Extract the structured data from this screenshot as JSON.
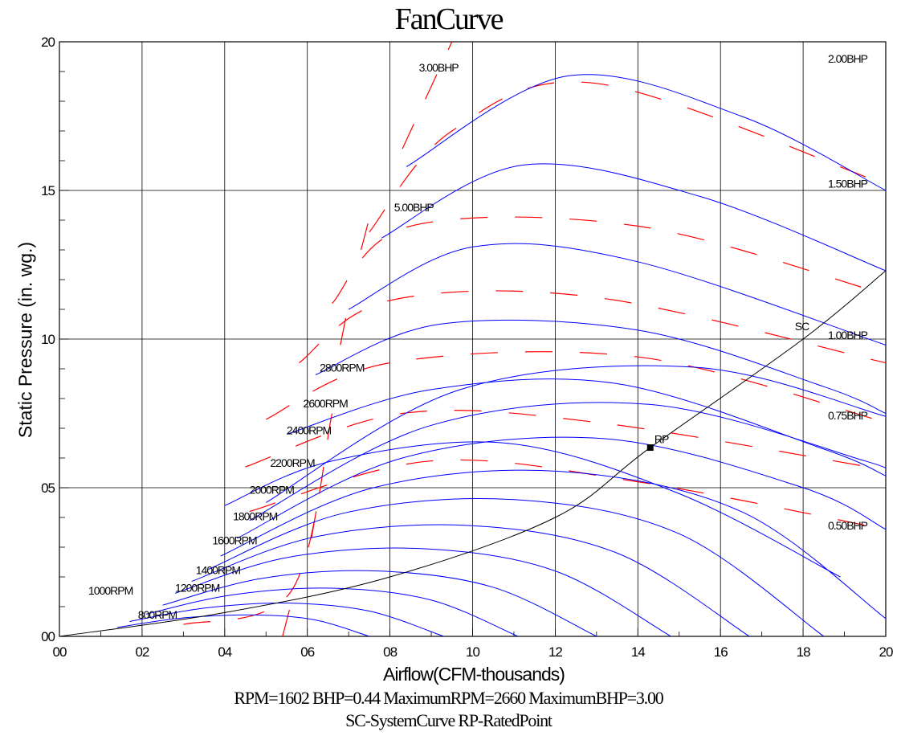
{
  "title": "FanCurve",
  "footer_line1": "RPM=1602 BHP=0.44 MaximumRPM=2660 MaximumBHP=3.00",
  "footer_line2": "SC-SystemCurve RP-RatedPoint",
  "colors": {
    "rpm_curves": "#0000ff",
    "bhp_curves": "#ff0000",
    "system_curve": "#000000",
    "grid": "#000000"
  },
  "chart_data": {
    "type": "line",
    "title": "FanCurve",
    "xlabel": "Airflow(CFM-thousands)",
    "ylabel": "Static Pressure (in. wg.)",
    "xlim": [
      0,
      20
    ],
    "ylim": [
      0,
      20
    ],
    "x_ticks": [
      0,
      2,
      4,
      6,
      8,
      10,
      12,
      14,
      16,
      18,
      20
    ],
    "y_ticks": [
      0,
      5,
      10,
      15,
      20
    ],
    "x_tick_labels": [
      "00",
      "02",
      "04",
      "06",
      "08",
      "10",
      "12",
      "14",
      "16",
      "18",
      "20"
    ],
    "y_tick_labels": [
      "00",
      "05",
      "10",
      "15",
      "20"
    ],
    "grid": true,
    "rpm_curves": [
      {
        "label": "800RPM",
        "points": [
          [
            1.4,
            0.3
          ],
          [
            3.0,
            0.62
          ],
          [
            4.8,
            0.72
          ],
          [
            6.2,
            0.55
          ],
          [
            7.5,
            0.0
          ]
        ]
      },
      {
        "label": "1000RPM",
        "points": [
          [
            1.7,
            0.5
          ],
          [
            3.5,
            0.95
          ],
          [
            5.5,
            1.12
          ],
          [
            7.5,
            0.85
          ],
          [
            9.3,
            0.0
          ]
        ]
      },
      {
        "label": "1200RPM",
        "points": [
          [
            2.1,
            0.75
          ],
          [
            4.2,
            1.4
          ],
          [
            6.6,
            1.62
          ],
          [
            9.0,
            1.22
          ],
          [
            11.1,
            0.0
          ]
        ]
      },
      {
        "label": "1400RPM",
        "points": [
          [
            2.5,
            1.05
          ],
          [
            4.9,
            1.95
          ],
          [
            7.7,
            2.2
          ],
          [
            10.5,
            1.65
          ],
          [
            13.0,
            0.0
          ]
        ]
      },
      {
        "label": "1600RPM",
        "points": [
          [
            2.8,
            1.45
          ],
          [
            5.5,
            2.65
          ],
          [
            8.8,
            2.95
          ],
          [
            12.0,
            2.2
          ],
          [
            14.8,
            0.0
          ]
        ]
      },
      {
        "label": "1800RPM",
        "points": [
          [
            3.2,
            1.85
          ],
          [
            6.2,
            3.35
          ],
          [
            9.9,
            3.73
          ],
          [
            13.5,
            2.8
          ],
          [
            16.7,
            0.0
          ]
        ]
      },
      {
        "label": "2000RPM",
        "points": [
          [
            3.6,
            2.25
          ],
          [
            6.9,
            4.15
          ],
          [
            11.0,
            4.6
          ],
          [
            15.0,
            3.45
          ],
          [
            18.5,
            0.0
          ]
        ]
      },
      {
        "label": "2200RPM",
        "points": [
          [
            3.9,
            2.7
          ],
          [
            7.6,
            5.0
          ],
          [
            12.1,
            5.55
          ],
          [
            16.5,
            4.2
          ],
          [
            20.0,
            0.6
          ]
        ]
      },
      {
        "label": "2400RPM",
        "points": [
          [
            4.3,
            3.3
          ],
          [
            8.3,
            6.0
          ],
          [
            13.2,
            6.65
          ],
          [
            18.0,
            5.0
          ],
          [
            20.0,
            3.6
          ]
        ]
      },
      {
        "label": "2600RPM",
        "points": [
          [
            4.6,
            3.9
          ],
          [
            9.0,
            7.1
          ],
          [
            14.3,
            7.8
          ],
          [
            19.5,
            5.9
          ],
          [
            20.0,
            5.5
          ]
        ]
      },
      {
        "label": "2800RPM",
        "points": [
          [
            5.0,
            4.5
          ],
          [
            9.7,
            8.3
          ],
          [
            15.4,
            9.05
          ],
          [
            20.0,
            7.4
          ]
        ]
      },
      {
        "label": "",
        "points": [
          [
            4.0,
            4.4
          ],
          [
            6.6,
            5.9
          ],
          [
            10.8,
            6.5
          ],
          [
            15.0,
            4.8
          ],
          [
            18.9,
            2.0
          ]
        ]
      },
      {
        "label": "",
        "points": [
          [
            5.5,
            6.8
          ],
          [
            9.0,
            8.3
          ],
          [
            13.5,
            8.5
          ],
          [
            18.5,
            6.3
          ],
          [
            20.0,
            5.4
          ]
        ]
      },
      {
        "label": "",
        "points": [
          [
            6.2,
            8.8
          ],
          [
            9.2,
            10.5
          ],
          [
            14.0,
            10.3
          ],
          [
            18.5,
            8.4
          ],
          [
            20.0,
            7.5
          ]
        ]
      },
      {
        "label": "",
        "points": [
          [
            7.0,
            11.0
          ],
          [
            10.0,
            13.1
          ],
          [
            14.0,
            12.6
          ],
          [
            20.0,
            9.8
          ]
        ]
      },
      {
        "label": "",
        "points": [
          [
            7.8,
            13.4
          ],
          [
            11.2,
            15.85
          ],
          [
            15.5,
            14.8
          ],
          [
            20.0,
            12.3
          ]
        ]
      },
      {
        "label": "",
        "points": [
          [
            8.4,
            15.8
          ],
          [
            12.3,
            18.85
          ],
          [
            16.5,
            17.5
          ],
          [
            20.0,
            15.0
          ]
        ]
      }
    ],
    "bhp_curves": [
      {
        "label": "0.50BHP",
        "points": [
          [
            4.6,
            4.2
          ],
          [
            9.0,
            5.9
          ],
          [
            14.0,
            5.2
          ],
          [
            20.0,
            3.6
          ]
        ]
      },
      {
        "label": "0.75BHP",
        "points": [
          [
            4.5,
            5.7
          ],
          [
            8.3,
            7.5
          ],
          [
            13.0,
            7.2
          ],
          [
            20.0,
            5.6
          ]
        ]
      },
      {
        "label": "1.00BHP",
        "points": [
          [
            5.0,
            7.3
          ],
          [
            8.0,
            9.2
          ],
          [
            14.0,
            9.4
          ],
          [
            20.0,
            7.2
          ]
        ]
      },
      {
        "label": "",
        "points": [
          [
            5.8,
            9.2
          ],
          [
            8.0,
            11.3
          ],
          [
            13.0,
            11.4
          ],
          [
            20.0,
            9.2
          ]
        ]
      },
      {
        "label": "",
        "points": [
          [
            6.6,
            11.2
          ],
          [
            8.5,
            13.8
          ],
          [
            14.0,
            13.8
          ],
          [
            20.0,
            11.5
          ]
        ]
      },
      {
        "label": "1.50BHP",
        "points": [
          [
            7.5,
            13.6
          ],
          [
            9.5,
            17.0
          ],
          [
            13.0,
            18.6
          ],
          [
            20.0,
            15.2
          ]
        ]
      },
      {
        "label": "2.00BHP",
        "points": [
          [
            8.3,
            16.4
          ],
          [
            9.5,
            20.0
          ]
        ]
      },
      {
        "label": "",
        "points": [
          [
            3.0,
            0.4
          ],
          [
            5.6,
            1.5
          ],
          [
            6.6,
            7.5
          ]
        ]
      },
      {
        "label": "",
        "points": [
          [
            5.4,
            0.0
          ],
          [
            5.7,
            1.6
          ]
        ]
      },
      {
        "label": "",
        "points": [
          [
            6.1,
            3.3
          ],
          [
            6.3,
            4.9
          ]
        ]
      },
      {
        "label": "",
        "points": [
          [
            6.8,
            9.8
          ],
          [
            7.0,
            11.2
          ]
        ]
      },
      {
        "label": "",
        "points": [
          [
            7.3,
            13.0
          ],
          [
            7.6,
            14.6
          ]
        ]
      }
    ],
    "system_curve": {
      "label": "SC",
      "points": [
        [
          0,
          0
        ],
        [
          4,
          0.8
        ],
        [
          8,
          2.0
        ],
        [
          12,
          4.0
        ],
        [
          14.3,
          6.35
        ],
        [
          18,
          10.0
        ],
        [
          20,
          12.3
        ]
      ]
    },
    "rated_point": {
      "label": "RP",
      "x": 14.3,
      "y": 6.35
    },
    "annotations": [
      {
        "text": "3.00BHP",
        "x": 8.7,
        "y": 19.0
      },
      {
        "text": "5.00BHP",
        "x": 8.1,
        "y": 14.3
      },
      {
        "text": "2.00BHP",
        "x": 18.6,
        "y": 19.3
      },
      {
        "text": "1.50BHP",
        "x": 18.6,
        "y": 15.1
      },
      {
        "text": "1.00BHP",
        "x": 18.6,
        "y": 10.0
      },
      {
        "text": "0.75BHP",
        "x": 18.6,
        "y": 7.3
      },
      {
        "text": "0.50BHP",
        "x": 18.6,
        "y": 3.6
      },
      {
        "text": "SC",
        "x": 17.8,
        "y": 10.3
      },
      {
        "text": "RP",
        "x": 14.4,
        "y": 6.5
      },
      {
        "text": "2800RPM",
        "x": 6.3,
        "y": 8.9
      },
      {
        "text": "2600RPM",
        "x": 5.9,
        "y": 7.7
      },
      {
        "text": "2400RPM",
        "x": 5.5,
        "y": 6.8
      },
      {
        "text": "2200RPM",
        "x": 5.1,
        "y": 5.7
      },
      {
        "text": "2000RPM",
        "x": 4.6,
        "y": 4.8
      },
      {
        "text": "1800RPM",
        "x": 4.2,
        "y": 3.9
      },
      {
        "text": "1600RPM",
        "x": 3.7,
        "y": 3.1
      },
      {
        "text": "1400RPM",
        "x": 3.3,
        "y": 2.1
      },
      {
        "text": "1200RPM",
        "x": 2.8,
        "y": 1.5
      },
      {
        "text": "1000RPM",
        "x": 0.7,
        "y": 1.4
      },
      {
        "text": "800RPM",
        "x": 1.9,
        "y": 0.6
      }
    ]
  }
}
